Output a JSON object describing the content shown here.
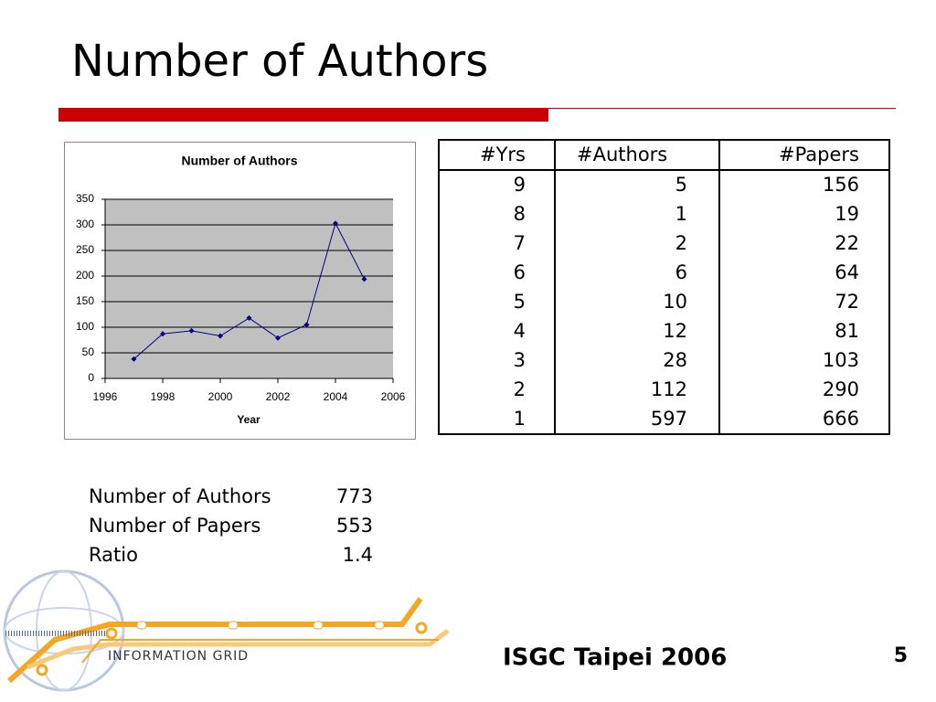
{
  "title": "Number of Authors",
  "chart_data": {
    "type": "line",
    "title": "Number of Authors",
    "x_label": "Year",
    "x": [
      1997,
      1998,
      1999,
      2000,
      2001,
      2002,
      2003,
      2004,
      2005
    ],
    "y": [
      38,
      87,
      93,
      83,
      118,
      79,
      105,
      303,
      194
    ],
    "color": "#000080",
    "xlim": [
      1996,
      2006
    ],
    "xticks": [
      1996,
      1998,
      2000,
      2002,
      2004,
      2006
    ],
    "ylim": [
      0,
      350
    ],
    "yticks": [
      0,
      50,
      100,
      150,
      200,
      250,
      300,
      350
    ],
    "grid": true
  },
  "table": {
    "header": [
      "#Yrs",
      "#Authors",
      "#Papers"
    ],
    "rows": [
      [
        9,
        5,
        156
      ],
      [
        8,
        1,
        19
      ],
      [
        7,
        2,
        22
      ],
      [
        6,
        6,
        64
      ],
      [
        5,
        10,
        72
      ],
      [
        4,
        12,
        81
      ],
      [
        3,
        28,
        103
      ],
      [
        2,
        112,
        290
      ],
      [
        1,
        597,
        666
      ]
    ]
  },
  "summary": [
    [
      "Number of Authors",
      773
    ],
    [
      "Number of Papers",
      553
    ],
    [
      "Ratio",
      1.4
    ]
  ],
  "logo": {
    "label": "INFORMATION GRID"
  },
  "footer": {
    "text": "ISGC Taipei 2006",
    "page": 5
  }
}
